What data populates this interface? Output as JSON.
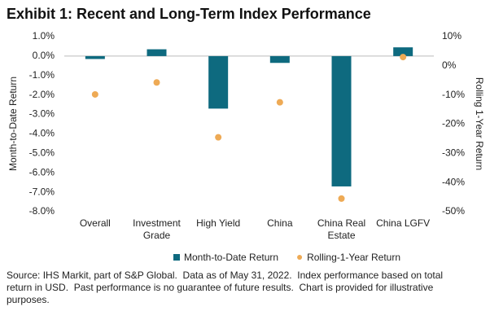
{
  "chart_data": {
    "type": "bar",
    "title": "Exhibit 1: Recent and Long-Term Index Performance",
    "y_label": "Month-to-Date Return",
    "y2_label": "Rolling 1-Year Return",
    "categories": [
      "Overall",
      "Investment Grade",
      "High Yield",
      "China",
      "China Real Estate",
      "China LGFV"
    ],
    "series": [
      {
        "name": "Month-to-Date Return",
        "type": "bar",
        "color": "#0e6a7f",
        "values": [
          -0.15,
          0.35,
          -2.7,
          -0.35,
          -6.7,
          0.45
        ]
      },
      {
        "name": "Rolling-1-Year Return",
        "type": "scatter",
        "axis": "y2",
        "color": "#eeaa55",
        "values": [
          -9.8,
          -5.7,
          -24.5,
          -12.5,
          -45.5,
          3
        ]
      }
    ],
    "ylim": [
      -8,
      1
    ],
    "yticks": [
      {
        "value": 1,
        "label": "1.0%"
      },
      {
        "value": 0,
        "label": "0.0%"
      },
      {
        "value": -1,
        "label": "-1.0%"
      },
      {
        "value": -2,
        "label": "-2.0%"
      },
      {
        "value": -3,
        "label": "-3.0%"
      },
      {
        "value": -4,
        "label": "-4.0%"
      },
      {
        "value": -5,
        "label": "-5.0%"
      },
      {
        "value": -6,
        "label": "-6.0%"
      },
      {
        "value": -7,
        "label": "-7.0%"
      },
      {
        "value": -8,
        "label": "-8.0%"
      }
    ],
    "y2lim": [
      -50,
      10
    ],
    "y2ticks": [
      {
        "value": 10,
        "label": "10%"
      },
      {
        "value": 0,
        "label": "0%"
      },
      {
        "value": -10,
        "label": "-10%"
      },
      {
        "value": -20,
        "label": "-20%"
      },
      {
        "value": -30,
        "label": "-30%"
      },
      {
        "value": -40,
        "label": "-40%"
      },
      {
        "value": -50,
        "label": "-50%"
      }
    ],
    "grid": false,
    "legend": "bottom",
    "note": "Source: IHS Markit, part of S&P Global.  Data as of May 31, 2022.  Index performance based on total return in USD.  Past performance is no guarantee of future results.  Chart is provided for illustrative purposes."
  }
}
